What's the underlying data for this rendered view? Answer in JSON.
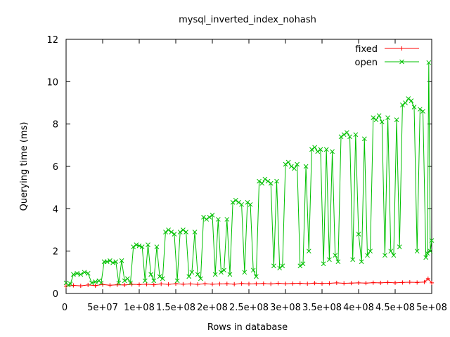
{
  "chart_data": {
    "type": "line",
    "title": "mysql_inverted_index_nohash",
    "xlabel": "Rows in database",
    "ylabel": "Querying time (ms)",
    "xlim": [
      0,
      500000000
    ],
    "ylim": [
      0,
      12
    ],
    "x_ticks": [
      {
        "value": 0,
        "label": "0"
      },
      {
        "value": 50000000,
        "label": "5e+07"
      },
      {
        "value": 100000000,
        "label": "1e+08"
      },
      {
        "value": 150000000,
        "label": "1.5e+08"
      },
      {
        "value": 200000000,
        "label": "2e+08"
      },
      {
        "value": 250000000,
        "label": "2.5e+08"
      },
      {
        "value": 300000000,
        "label": "3e+08"
      },
      {
        "value": 350000000,
        "label": "3.5e+08"
      },
      {
        "value": 400000000,
        "label": "4e+08"
      },
      {
        "value": 450000000,
        "label": "4.5e+08"
      },
      {
        "value": 500000000,
        "label": "5e+08"
      }
    ],
    "y_ticks": [
      {
        "value": 0,
        "label": "0"
      },
      {
        "value": 2,
        "label": "2"
      },
      {
        "value": 4,
        "label": "4"
      },
      {
        "value": 6,
        "label": "6"
      },
      {
        "value": 8,
        "label": "8"
      },
      {
        "value": 10,
        "label": "10"
      },
      {
        "value": 12,
        "label": "12"
      }
    ],
    "grid": false,
    "legend_position": "top-right",
    "series": [
      {
        "name": "fixed",
        "color": "#ff0000",
        "marker": "plus",
        "x": [
          0,
          10000000,
          20000000,
          30000000,
          40000000,
          50000000,
          60000000,
          70000000,
          80000000,
          90000000,
          100000000,
          110000000,
          120000000,
          130000000,
          140000000,
          150000000,
          160000000,
          170000000,
          180000000,
          190000000,
          200000000,
          210000000,
          220000000,
          230000000,
          240000000,
          250000000,
          260000000,
          270000000,
          280000000,
          290000000,
          300000000,
          310000000,
          320000000,
          330000000,
          340000000,
          350000000,
          360000000,
          370000000,
          380000000,
          390000000,
          400000000,
          410000000,
          420000000,
          430000000,
          440000000,
          450000000,
          460000000,
          470000000,
          480000000,
          490000000,
          495000000,
          500000000
        ],
        "y": [
          0.35,
          0.38,
          0.36,
          0.4,
          0.37,
          0.42,
          0.39,
          0.41,
          0.4,
          0.43,
          0.42,
          0.44,
          0.41,
          0.45,
          0.43,
          0.46,
          0.44,
          0.45,
          0.43,
          0.46,
          0.44,
          0.45,
          0.46,
          0.44,
          0.47,
          0.45,
          0.46,
          0.47,
          0.45,
          0.48,
          0.46,
          0.47,
          0.48,
          0.46,
          0.49,
          0.47,
          0.48,
          0.5,
          0.48,
          0.49,
          0.5,
          0.49,
          0.51,
          0.5,
          0.52,
          0.5,
          0.52,
          0.53,
          0.52,
          0.54,
          0.7,
          0.5
        ]
      },
      {
        "name": "open",
        "color": "#00c000",
        "marker": "cross",
        "x": [
          0,
          3000000,
          6000000,
          10000000,
          15000000,
          20000000,
          25000000,
          30000000,
          35000000,
          40000000,
          45000000,
          48000000,
          52000000,
          56000000,
          60000000,
          64000000,
          68000000,
          72000000,
          76000000,
          80000000,
          84000000,
          88000000,
          92000000,
          96000000,
          100000000,
          104000000,
          108000000,
          112000000,
          116000000,
          120000000,
          124000000,
          128000000,
          132000000,
          136000000,
          140000000,
          144000000,
          148000000,
          152000000,
          156000000,
          160000000,
          164000000,
          168000000,
          172000000,
          176000000,
          180000000,
          184000000,
          188000000,
          192000000,
          196000000,
          200000000,
          204000000,
          208000000,
          212000000,
          216000000,
          220000000,
          224000000,
          228000000,
          232000000,
          236000000,
          240000000,
          244000000,
          248000000,
          252000000,
          256000000,
          260000000,
          264000000,
          268000000,
          272000000,
          276000000,
          280000000,
          284000000,
          288000000,
          292000000,
          296000000,
          300000000,
          304000000,
          308000000,
          312000000,
          316000000,
          320000000,
          324000000,
          328000000,
          332000000,
          336000000,
          340000000,
          344000000,
          348000000,
          352000000,
          356000000,
          360000000,
          364000000,
          368000000,
          372000000,
          376000000,
          380000000,
          384000000,
          388000000,
          392000000,
          396000000,
          400000000,
          404000000,
          408000000,
          412000000,
          416000000,
          420000000,
          424000000,
          428000000,
          432000000,
          436000000,
          440000000,
          444000000,
          448000000,
          452000000,
          456000000,
          460000000,
          464000000,
          468000000,
          472000000,
          476000000,
          480000000,
          484000000,
          488000000,
          492000000,
          494000000,
          496000000,
          498000000,
          500000000
        ],
        "y": [
          0.5,
          0.4,
          0.45,
          0.9,
          0.95,
          0.9,
          1.0,
          0.95,
          0.5,
          0.55,
          0.6,
          0.5,
          1.5,
          1.5,
          1.55,
          1.45,
          1.5,
          0.5,
          1.55,
          0.6,
          0.7,
          0.5,
          2.2,
          2.3,
          2.25,
          2.2,
          0.6,
          2.3,
          0.9,
          0.6,
          2.2,
          0.8,
          0.7,
          2.9,
          3.0,
          2.9,
          2.8,
          0.6,
          2.9,
          3.0,
          2.9,
          0.8,
          1.0,
          2.9,
          0.9,
          0.7,
          3.6,
          3.5,
          3.6,
          3.7,
          0.9,
          3.5,
          1.0,
          1.1,
          3.5,
          0.9,
          4.3,
          4.4,
          4.3,
          4.2,
          1.0,
          4.3,
          4.2,
          1.1,
          0.8,
          5.3,
          5.2,
          5.4,
          5.3,
          5.2,
          1.3,
          5.3,
          1.2,
          1.3,
          6.1,
          6.2,
          6.0,
          5.9,
          6.1,
          1.3,
          1.4,
          6.0,
          2.0,
          6.8,
          6.9,
          6.7,
          6.8,
          1.4,
          6.8,
          1.6,
          6.7,
          1.8,
          1.5,
          7.4,
          7.5,
          7.6,
          7.4,
          1.6,
          7.5,
          2.8,
          1.5,
          7.3,
          1.8,
          2.0,
          8.3,
          8.2,
          8.4,
          8.1,
          1.8,
          8.3,
          2.0,
          1.8,
          8.2,
          2.2,
          8.9,
          9.0,
          9.2,
          9.1,
          8.8,
          2.0,
          8.7,
          8.6,
          1.7,
          1.9,
          10.9,
          2.0,
          2.5
        ]
      }
    ]
  }
}
